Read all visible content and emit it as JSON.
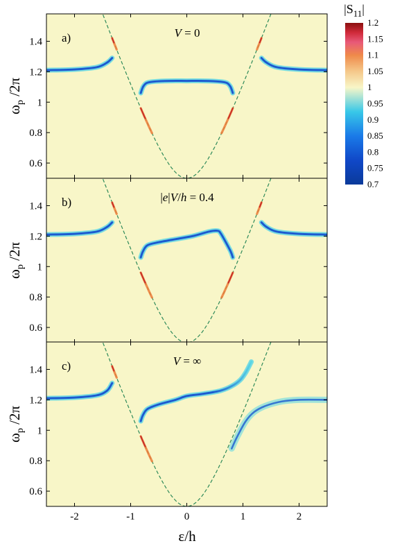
{
  "colors": {
    "background": "#f8f6c8",
    "resonance": "#1c5ad0",
    "resonance_light": "#59d6e6",
    "edge_hot": "#ef7d38",
    "edge_red": "#c52a28",
    "dashed_curve": "#2f8a5a",
    "frame": "#000000"
  },
  "colorbar": {
    "title": "|S",
    "title_sub": "11",
    "title_end": "|",
    "ticks": [
      "1.2",
      "1.15",
      "1.1",
      "1.05",
      "1",
      "0.95",
      "0.9",
      "0.85",
      "0.8",
      "0.75",
      "0.7"
    ],
    "range": [
      0.7,
      1.2
    ]
  },
  "chart_data": [
    {
      "type": "heatmap",
      "panel": "a)",
      "condition": {
        "var": "V",
        "rel": " = 0"
      },
      "ylabel": "ωp /2π",
      "xlim": [
        -2.5,
        2.5
      ],
      "ylim": [
        0.5,
        1.58
      ],
      "yticks": [
        "1.4",
        "1.2",
        "1",
        "0.8",
        "0.6"
      ],
      "resonance": {
        "left": {
          "x": [
            -2.5,
            -2.0,
            -1.6,
            -1.42,
            -1.33
          ],
          "y": [
            1.21,
            1.215,
            1.23,
            1.26,
            1.29
          ]
        },
        "right": {
          "x": [
            1.33,
            1.42,
            1.6,
            2.0,
            2.5
          ],
          "y": [
            1.29,
            1.26,
            1.23,
            1.215,
            1.21
          ]
        },
        "center": {
          "x": [
            -0.82,
            -0.78,
            -0.72,
            -0.6,
            -0.3,
            0,
            0.3,
            0.6,
            0.72,
            0.78,
            0.82
          ],
          "y": [
            1.06,
            1.1,
            1.125,
            1.135,
            1.14,
            1.14,
            1.14,
            1.135,
            1.125,
            1.1,
            1.06
          ]
        }
      },
      "dashed_curve": "ω = sqrt(ε² + 0.25)"
    },
    {
      "type": "heatmap",
      "panel": "b)",
      "condition": {
        "pre": "|",
        "var": "e",
        "mid": "|",
        "var2": "V",
        "mid2": "/",
        "var3": "h",
        "rel": " = 0.4"
      },
      "ylabel": "ωp /2π",
      "xlim": [
        -2.5,
        2.5
      ],
      "ylim": [
        0.5,
        1.58
      ],
      "yticks": [
        "1.4",
        "1.2",
        "1",
        "0.8",
        "0.6"
      ],
      "resonance": {
        "left": {
          "x": [
            -2.5,
            -2.0,
            -1.6,
            -1.42,
            -1.33
          ],
          "y": [
            1.21,
            1.215,
            1.23,
            1.26,
            1.29
          ]
        },
        "right": {
          "x": [
            1.33,
            1.42,
            1.6,
            2.0,
            2.5
          ],
          "y": [
            1.29,
            1.26,
            1.23,
            1.215,
            1.21
          ]
        },
        "center": {
          "x": [
            -0.82,
            -0.78,
            -0.7,
            -0.5,
            -0.2,
            0.1,
            0.4,
            0.55,
            0.6,
            0.68,
            0.78,
            0.82
          ],
          "y": [
            1.06,
            1.1,
            1.14,
            1.16,
            1.18,
            1.2,
            1.23,
            1.235,
            1.22,
            1.17,
            1.1,
            1.06
          ]
        }
      },
      "dashed_curve": "ω = sqrt(ε² + 0.25)"
    },
    {
      "type": "heatmap",
      "panel": "c)",
      "condition": {
        "var": "V",
        "rel": " = ∞"
      },
      "ylabel": "ωp /2π",
      "xlim": [
        -2.5,
        2.5
      ],
      "ylim": [
        0.5,
        1.58
      ],
      "yticks": [
        "1.4",
        "1.2",
        "1",
        "0.8",
        "0.6"
      ],
      "xticks": [
        "-2",
        "-1",
        "0",
        "1",
        "2"
      ],
      "xlabel": "ε/h",
      "resonance": {
        "left": {
          "x": [
            -2.5,
            -2.0,
            -1.6,
            -1.42,
            -1.33
          ],
          "y": [
            1.21,
            1.215,
            1.23,
            1.26,
            1.31
          ]
        },
        "center": {
          "x": [
            -0.82,
            -0.78,
            -0.7,
            -0.5,
            -0.2,
            0,
            0.3,
            0.6,
            0.8,
            0.95,
            1.05,
            1.15
          ],
          "y": [
            1.06,
            1.1,
            1.14,
            1.17,
            1.2,
            1.225,
            1.24,
            1.26,
            1.29,
            1.33,
            1.38,
            1.45
          ]
        },
        "right": {
          "x": [
            0.8,
            0.9,
            1.05,
            1.2,
            1.4,
            1.7,
            2.0,
            2.5
          ],
          "y": [
            0.88,
            0.96,
            1.06,
            1.12,
            1.16,
            1.19,
            1.2,
            1.2
          ]
        }
      },
      "dashed_curve": "ω = sqrt(ε² + 0.25)"
    }
  ]
}
